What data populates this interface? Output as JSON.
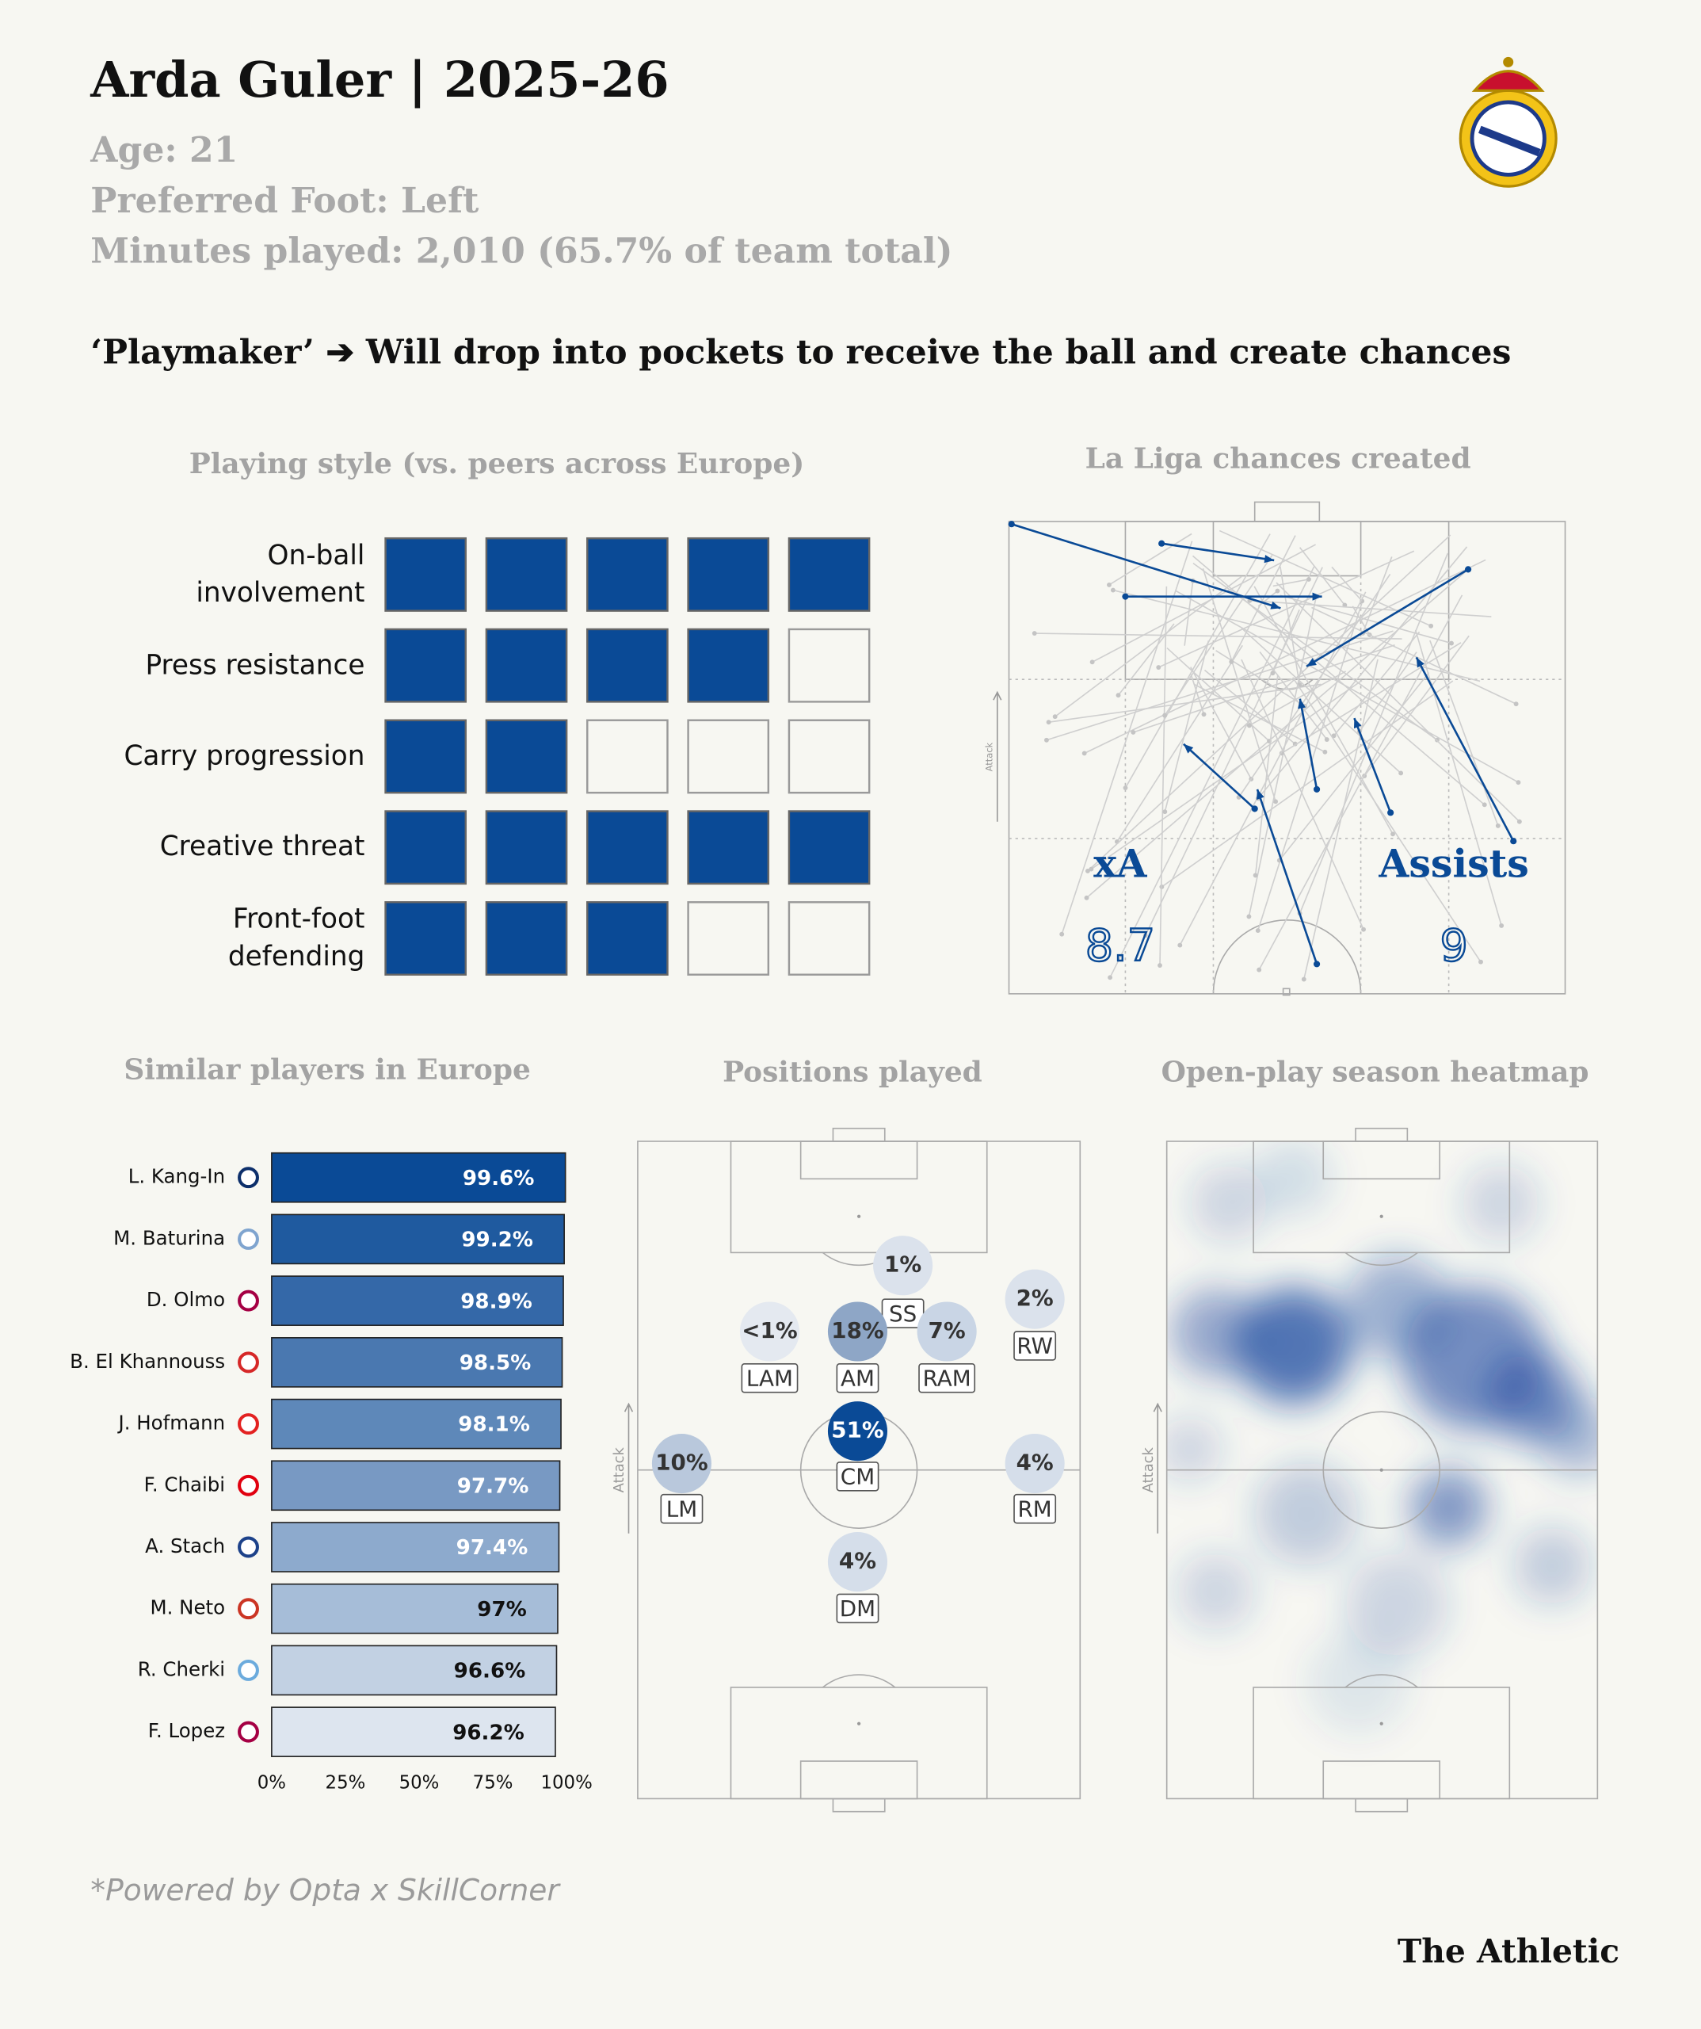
{
  "header": {
    "title": "Arda Guler | 2025-26",
    "age": "Age: 21",
    "foot": "Preferred Foot: Left",
    "minutes": "Minutes played: 2,010 (65.7% of team total)",
    "headline": "‘Playmaker’ ➔ Will drop into pockets to receive the ball and create chances"
  },
  "playing_style": {
    "title": "Playing style (vs. peers across Europe)",
    "max": 5,
    "color": "#0a4a96",
    "categories": [
      "On-ball\ninvolvement",
      "Press resistance",
      "Carry progression",
      "Creative threat",
      "Front-foot\ndefending"
    ],
    "values": [
      5,
      4,
      2,
      5,
      3
    ]
  },
  "chances": {
    "title": "La Liga chances created",
    "axis_label": "Attack",
    "xa_label": "xA",
    "xa": "8.7",
    "assists_label": "Assists",
    "assists": "9"
  },
  "similar_players": {
    "type": "bar",
    "title": "Similar players in Europe",
    "categories": [
      "L. Kang-In",
      "M. Baturina",
      "D. Olmo",
      "B. El Khannouss",
      "J. Hofmann",
      "F. Chaibi",
      "A. Stach",
      "M. Neto",
      "R. Cherki",
      "F. Lopez"
    ],
    "values": [
      99.6,
      99.2,
      98.9,
      98.5,
      98.1,
      97.7,
      97.4,
      97,
      96.6,
      96.2
    ],
    "value_labels": [
      "99.6%",
      "99.2%",
      "98.9%",
      "98.5%",
      "98.1%",
      "97.7%",
      "97.4%",
      "97%",
      "96.6%",
      "96.2%"
    ],
    "colors": [
      "#0a4a96",
      "#1f5a9f",
      "#3468a8",
      "#4a78b0",
      "#5e88b9",
      "#7899c3",
      "#8daacd",
      "#a6bdd8",
      "#c2d1e3",
      "#dde5ef"
    ],
    "value_label_colors": [
      "#ffffff",
      "#ffffff",
      "#ffffff",
      "#ffffff",
      "#ffffff",
      "#ffffff",
      "#ffffff",
      "#111111",
      "#111111",
      "#111111"
    ],
    "xlim": [
      0,
      100
    ],
    "xticks": [
      {
        "value": 0,
        "label": "0%"
      },
      {
        "value": 25,
        "label": "25%"
      },
      {
        "value": 50,
        "label": "50%"
      },
      {
        "value": 75,
        "label": "75%"
      },
      {
        "value": 100,
        "label": "100%"
      }
    ]
  },
  "positions": {
    "title": "Positions played",
    "axis_label": "Attack",
    "items": [
      {
        "label": "SS",
        "share": "1%",
        "color": "#dbe2ec"
      },
      {
        "label": "LAM",
        "share": "<1%",
        "color": "#e4e9f0"
      },
      {
        "label": "AM",
        "share": "18%",
        "color": "#8ea6c6"
      },
      {
        "label": "RAM",
        "share": "7%",
        "color": "#c9d5e5"
      },
      {
        "label": "RW",
        "share": "2%",
        "color": "#dbe2ec"
      },
      {
        "label": "CM",
        "share": "51%",
        "color": "#0a4a96"
      },
      {
        "label": "LM",
        "share": "10%",
        "color": "#b9c8dc"
      },
      {
        "label": "RM",
        "share": "4%",
        "color": "#d5deea"
      },
      {
        "label": "DM",
        "share": "4%",
        "color": "#d5deea"
      }
    ]
  },
  "heatmap": {
    "title": "Open-play season heatmap",
    "axis_label": "Attack"
  },
  "footer": {
    "note": "*Powered by Opta x SkillCorner",
    "brand": "The Athletic"
  }
}
